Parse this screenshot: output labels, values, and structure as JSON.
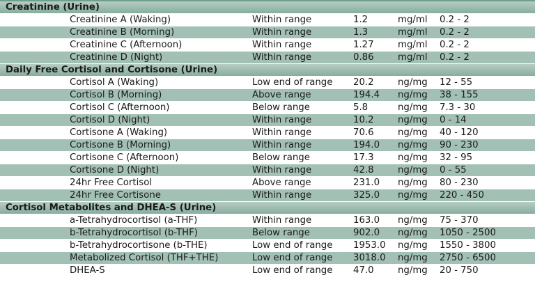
{
  "sections": [
    {
      "title": "Creatinine (Urine)",
      "rows": [
        {
          "name": "Creatinine A (Waking)",
          "status": "Within range",
          "value": "1.2",
          "unit": "mg/ml",
          "range": "0.2 - 2"
        },
        {
          "name": "Creatinine B (Morning)",
          "status": "Within range",
          "value": "1.3",
          "unit": "mg/ml",
          "range": "0.2 - 2"
        },
        {
          "name": "Creatinine C (Afternoon)",
          "status": "Within range",
          "value": "1.27",
          "unit": "mg/ml",
          "range": "0.2 - 2"
        },
        {
          "name": "Creatinine D (Night)",
          "status": "Within range",
          "value": "0.86",
          "unit": "mg/ml",
          "range": "0.2 - 2"
        }
      ]
    },
    {
      "title": "Daily Free Cortisol and Cortisone (Urine)",
      "rows": [
        {
          "name": "Cortisol A (Waking)",
          "status": "Low end of range",
          "value": "20.2",
          "unit": "ng/mg",
          "range": "12 - 55"
        },
        {
          "name": "Cortisol B (Morning)",
          "status": "Above range",
          "value": "194.4",
          "unit": "ng/mg",
          "range": "38 - 155"
        },
        {
          "name": "Cortisol C (Afternoon)",
          "status": "Below range",
          "value": "5.8",
          "unit": "ng/mg",
          "range": "7.3 - 30"
        },
        {
          "name": "Cortisol D (Night)",
          "status": "Within range",
          "value": "10.2",
          "unit": "ng/mg",
          "range": "0 - 14"
        },
        {
          "name": "Cortisone A (Waking)",
          "status": "Within range",
          "value": "70.6",
          "unit": "ng/mg",
          "range": "40 - 120"
        },
        {
          "name": "Cortisone B (Morning)",
          "status": "Within range",
          "value": "194.0",
          "unit": "ng/mg",
          "range": "90 - 230"
        },
        {
          "name": "Cortisone C (Afternoon)",
          "status": "Below range",
          "value": "17.3",
          "unit": "ng/mg",
          "range": "32 - 95"
        },
        {
          "name": "Cortisone D (Night)",
          "status": "Within range",
          "value": "42.8",
          "unit": "ng/mg",
          "range": "0 - 55"
        },
        {
          "name": "24hr Free Cortisol",
          "status": "Above range",
          "value": "231.0",
          "unit": "ng/mg",
          "range": "80 - 230"
        },
        {
          "name": "24hr Free Cortisone",
          "status": "Within range",
          "value": "325.0",
          "unit": "ng/mg",
          "range": "220 - 450"
        }
      ]
    },
    {
      "title": "Cortisol Metabolites and DHEA-S (Urine)",
      "rows": [
        {
          "name": "a-Tetrahydrocortisol (a-THF)",
          "status": "Within range",
          "value": "163.0",
          "unit": "ng/mg",
          "range": "75 - 370"
        },
        {
          "name": "b-Tetrahydrocortisol (b-THF)",
          "status": "Below range",
          "value": "902.0",
          "unit": "ng/mg",
          "range": "1050 - 2500"
        },
        {
          "name": "b-Tetrahydrocortisone (b-THE)",
          "status": "Low end of range",
          "value": "1953.0",
          "unit": "ng/mg",
          "range": "1550 - 3800"
        },
        {
          "name": "Metabolized Cortisol (THF+THE)",
          "status": "Low end of range",
          "value": "3018.0",
          "unit": "ng/mg",
          "range": "2750 - 6500"
        },
        {
          "name": "DHEA-S",
          "status": "Low end of range",
          "value": "47.0",
          "unit": "ng/mg",
          "range": "20 - 750"
        }
      ]
    }
  ]
}
